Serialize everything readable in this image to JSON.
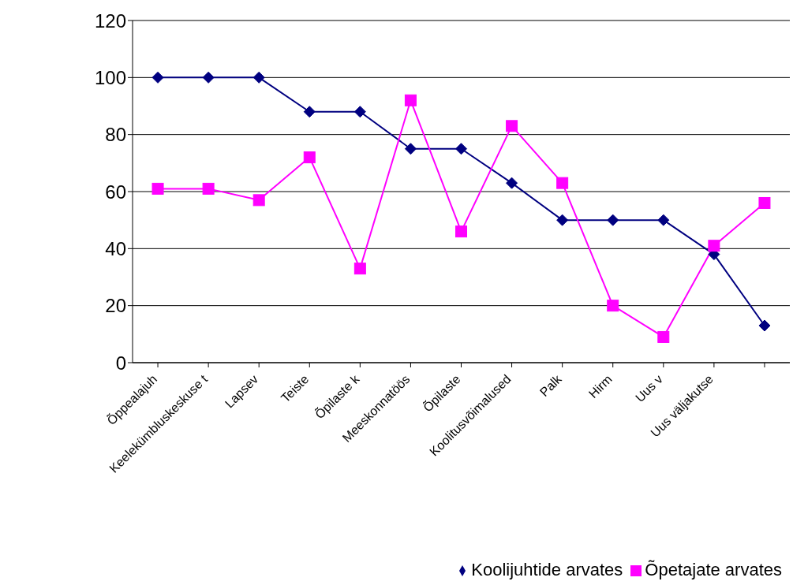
{
  "chart_data": {
    "type": "line",
    "categories": [
      "Õppealajuh",
      "Keelekümbluskeskuse t",
      "Lapsev",
      "Teiste",
      "Õpilaste k",
      "Meeskonnatöös",
      "Õpilaste",
      "Koolitusvõimalused",
      "Palk",
      "Hirm",
      "Uus v",
      "Uus väljakutse",
      null
    ],
    "series": [
      {
        "name": "Koolijuhtide arvates",
        "color": "#000080",
        "marker": "diamond",
        "values": [
          100,
          100,
          100,
          88,
          88,
          75,
          75,
          63,
          50,
          50,
          50,
          38,
          13
        ]
      },
      {
        "name": "Õpetajate arvates",
        "color": "#ff00ff",
        "marker": "square",
        "values": [
          61,
          61,
          57,
          72,
          33,
          92,
          46,
          83,
          63,
          20,
          9,
          41,
          56
        ]
      }
    ],
    "ylim": [
      0,
      120
    ],
    "yticks": [
      0,
      20,
      40,
      60,
      80,
      100,
      120
    ],
    "grid": "y",
    "legend": "bottom right",
    "line_style": "solid"
  }
}
